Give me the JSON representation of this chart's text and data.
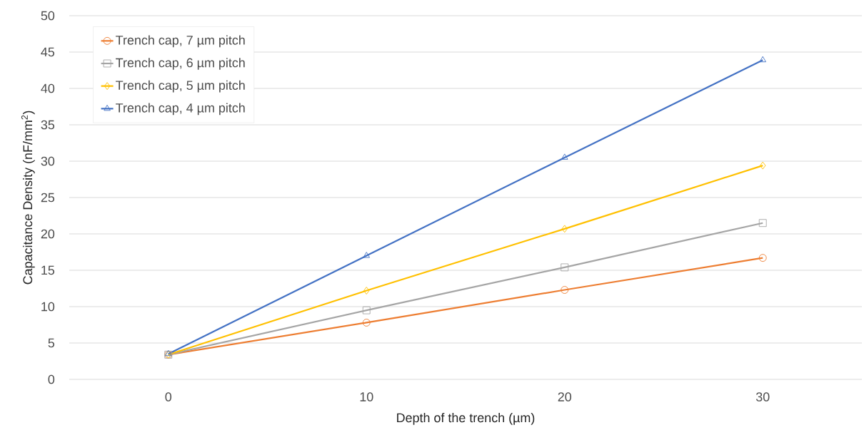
{
  "chart_data": {
    "type": "line",
    "xlabel": "Depth of the trench (µm)",
    "ylabel": "Capacitance Density (nF/mm$^{2}$)",
    "x": [
      0,
      10,
      20,
      30
    ],
    "xlim": [
      -5,
      35
    ],
    "ylim": [
      0,
      50
    ],
    "xticks": [
      0,
      10,
      20,
      30
    ],
    "yticks": [
      0,
      5,
      10,
      15,
      20,
      25,
      30,
      35,
      40,
      45,
      50
    ],
    "grid": "y",
    "legend": "top left",
    "line_style": "solid",
    "series": [
      {
        "name": "Trench cap, 7 µm pitch",
        "color": "#ed7d31",
        "marker": "circle",
        "values": [
          3.4,
          7.8,
          12.3,
          16.7
        ]
      },
      {
        "name": "Trench cap, 6 µm pitch",
        "color": "#a5a5a5",
        "marker": "square",
        "values": [
          3.4,
          9.5,
          15.4,
          21.5
        ]
      },
      {
        "name": "Trench cap, 5 µm pitch",
        "color": "#ffc000",
        "marker": "diamond",
        "values": [
          3.4,
          12.2,
          20.7,
          29.4
        ]
      },
      {
        "name": "Trench cap, 4 µm pitch",
        "color": "#4472c4",
        "marker": "triangle",
        "values": [
          3.5,
          17.0,
          30.5,
          43.9
        ]
      }
    ]
  }
}
